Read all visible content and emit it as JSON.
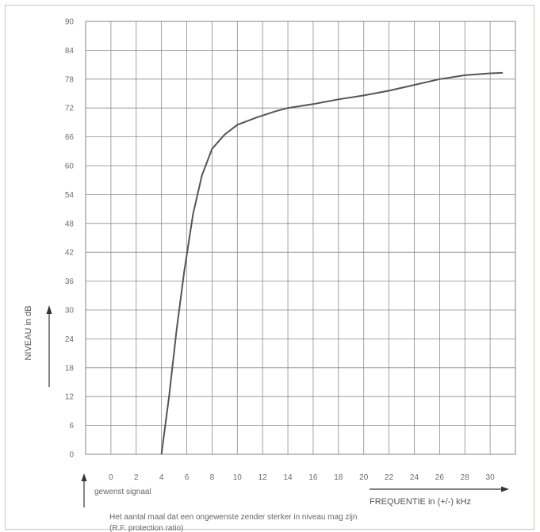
{
  "chart_data": {
    "type": "line",
    "ylabel": "NIVEAU in dB",
    "xlabel": "FREQUENTIE in (+/-) kHz",
    "x_note": "gewenst signaal",
    "caption_line1": "Het aantal maal dat een ongewenste zender sterker in niveau mag zijn",
    "caption_line2": "(R.F. protection ratio)",
    "xlim": [
      -2,
      32
    ],
    "ylim": [
      0,
      90
    ],
    "x_ticks": [
      "0",
      "2",
      "4",
      "6",
      "8",
      "10",
      "12",
      "14",
      "16",
      "18",
      "20",
      "22",
      "24",
      "26",
      "28",
      "30"
    ],
    "y_ticks": [
      "0",
      "6",
      "12",
      "18",
      "24",
      "30",
      "36",
      "42",
      "48",
      "54",
      "60",
      "66",
      "72",
      "78",
      "84",
      "90"
    ],
    "grid": true,
    "series": [
      {
        "color": "#555555",
        "points": [
          [
            4.0,
            0
          ],
          [
            4.6,
            12
          ],
          [
            5.2,
            26
          ],
          [
            5.8,
            38
          ],
          [
            6.5,
            50
          ],
          [
            7.2,
            58
          ],
          [
            8.0,
            63.5
          ],
          [
            9.0,
            66.5
          ],
          [
            10.0,
            68.5
          ],
          [
            11.5,
            70.0
          ],
          [
            13.0,
            71.3
          ],
          [
            14.0,
            72.0
          ],
          [
            16.0,
            72.8
          ],
          [
            18.0,
            73.8
          ],
          [
            20.0,
            74.6
          ],
          [
            22.0,
            75.6
          ],
          [
            24.0,
            76.8
          ],
          [
            26.0,
            78.0
          ],
          [
            28.0,
            78.8
          ],
          [
            30.0,
            79.2
          ],
          [
            31.0,
            79.3
          ]
        ]
      }
    ]
  }
}
